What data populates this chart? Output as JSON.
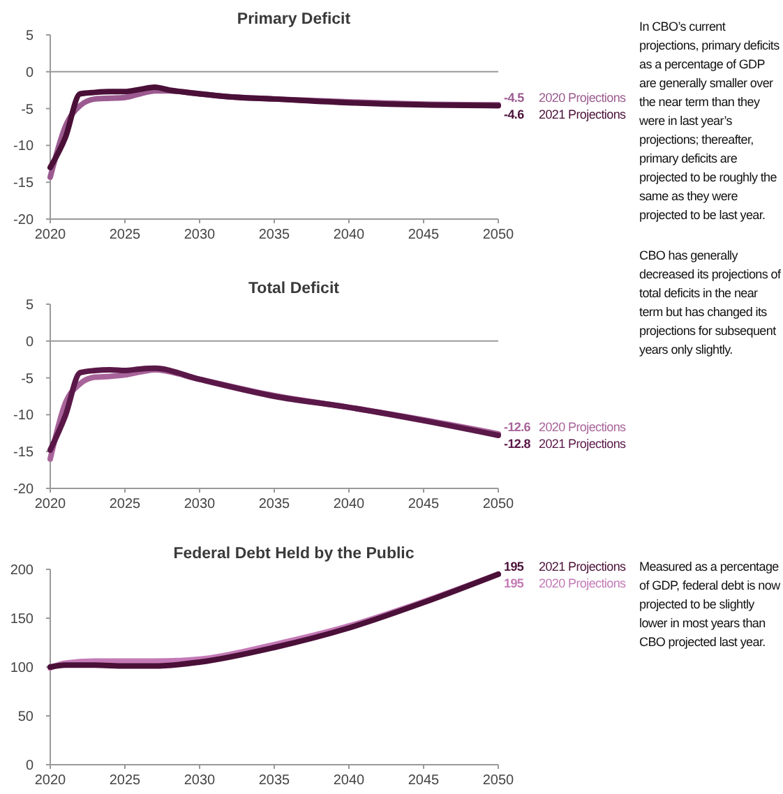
{
  "chart_data": [
    {
      "type": "line",
      "title": "Primary Deficit",
      "x": [
        2020,
        2021,
        2022,
        2023,
        2024,
        2025,
        2026,
        2027,
        2028,
        2030,
        2032,
        2035,
        2040,
        2045,
        2050
      ],
      "xlim": [
        2020,
        2050
      ],
      "xticks": [
        2020,
        2025,
        2030,
        2035,
        2040,
        2045,
        2050
      ],
      "ylim": [
        -20,
        5
      ],
      "yticks": [
        -20,
        -15,
        -10,
        -5,
        0,
        5
      ],
      "grid": false,
      "legend": false,
      "line_style": "solid",
      "marker": "none",
      "series": [
        {
          "name": "2020 Projections",
          "color": "#9c5b90",
          "values": [
            -14.3,
            -7.5,
            -4.6,
            -3.7,
            -3.6,
            -3.5,
            -3.0,
            -2.6,
            -2.6,
            -3.0,
            -3.4,
            -3.7,
            -4.1,
            -4.4,
            -4.5
          ],
          "value_labels": [
            null,
            null,
            null,
            null,
            null,
            null,
            null,
            null,
            null,
            null,
            null,
            null,
            null,
            null,
            "-4.5"
          ]
        },
        {
          "name": "2021 Projections",
          "color": "#4a1038",
          "values": [
            -13.0,
            -9.0,
            -3.0,
            -2.8,
            -2.7,
            -2.7,
            -2.4,
            -2.1,
            -2.5,
            -3.0,
            -3.4,
            -3.7,
            -4.2,
            -4.5,
            -4.6
          ],
          "value_labels": [
            null,
            null,
            null,
            null,
            null,
            null,
            null,
            null,
            null,
            null,
            null,
            null,
            null,
            null,
            "-4.6"
          ]
        }
      ],
      "ref_lines": [
        {
          "axis": "y",
          "value": 0,
          "color": "#9a9a9a"
        }
      ],
      "annotations": [
        "In CBO’s current projections, primary deficits as a percentage of GDP are generally smaller over the near term than they were in last year’s projections; thereafter, primary deficits are projected to be roughly the same as they were projected to be last year."
      ]
    },
    {
      "type": "line",
      "title": "Total Deficit",
      "x": [
        2020,
        2021,
        2022,
        2023,
        2024,
        2025,
        2026,
        2027,
        2030,
        2035,
        2040,
        2045,
        2050
      ],
      "xlim": [
        2020,
        2050
      ],
      "xticks": [
        2020,
        2025,
        2030,
        2035,
        2040,
        2045,
        2050
      ],
      "ylim": [
        -20,
        5
      ],
      "yticks": [
        -20,
        -15,
        -10,
        -5,
        0,
        5
      ],
      "grid": false,
      "legend": false,
      "line_style": "solid",
      "marker": "none",
      "series": [
        {
          "name": "2020 Projections",
          "color": "#a8649a",
          "values": [
            -16.0,
            -8.5,
            -5.8,
            -4.9,
            -4.8,
            -4.6,
            -4.2,
            -3.9,
            -5.2,
            -7.4,
            -9.0,
            -10.7,
            -12.6
          ],
          "value_labels": [
            null,
            null,
            null,
            null,
            null,
            null,
            null,
            null,
            null,
            null,
            null,
            null,
            "-12.6"
          ]
        },
        {
          "name": "2021 Projections",
          "color": "#5a1848",
          "values": [
            -14.8,
            -10.2,
            -4.3,
            -4.0,
            -3.9,
            -4.0,
            -3.8,
            -3.7,
            -5.2,
            -7.5,
            -9.0,
            -10.8,
            -12.8
          ],
          "value_labels": [
            null,
            null,
            null,
            null,
            null,
            null,
            null,
            null,
            null,
            null,
            null,
            null,
            "-12.8"
          ]
        }
      ],
      "ref_lines": [
        {
          "axis": "y",
          "value": 0,
          "color": "#9a9a9a"
        }
      ],
      "annotations": [
        "CBO has generally decreased its projections of total deficits in the near term but has changed its projections for subsequent years only slightly."
      ]
    },
    {
      "type": "line",
      "title": "Federal Debt Held by the Public",
      "x": [
        2020,
        2021,
        2023,
        2025,
        2027,
        2030,
        2035,
        2040,
        2045,
        2050
      ],
      "xlim": [
        2020,
        2050
      ],
      "xticks": [
        2020,
        2025,
        2030,
        2035,
        2040,
        2045,
        2050
      ],
      "ylim": [
        0,
        200
      ],
      "yticks": [
        0,
        50,
        100,
        150,
        200
      ],
      "grid": false,
      "legend": false,
      "line_style": "solid",
      "marker": "none",
      "series": [
        {
          "name": "2020 Projections",
          "color": "#c47ab6",
          "values": [
            99,
            104,
            106,
            106,
            106,
            108,
            123,
            142,
            167,
            195
          ],
          "value_labels": [
            null,
            null,
            null,
            null,
            null,
            null,
            null,
            null,
            null,
            "195"
          ]
        },
        {
          "name": "2021 Projections",
          "color": "#4a1038",
          "values": [
            100,
            102,
            102,
            101,
            101,
            105,
            120,
            140,
            166,
            195
          ],
          "value_labels": [
            null,
            null,
            null,
            null,
            null,
            null,
            null,
            null,
            null,
            "195"
          ]
        }
      ],
      "annotations": [
        "Measured as a percentage of GDP, federal debt is now projected to be slightly lower in most years than CBO projected last year."
      ]
    }
  ]
}
